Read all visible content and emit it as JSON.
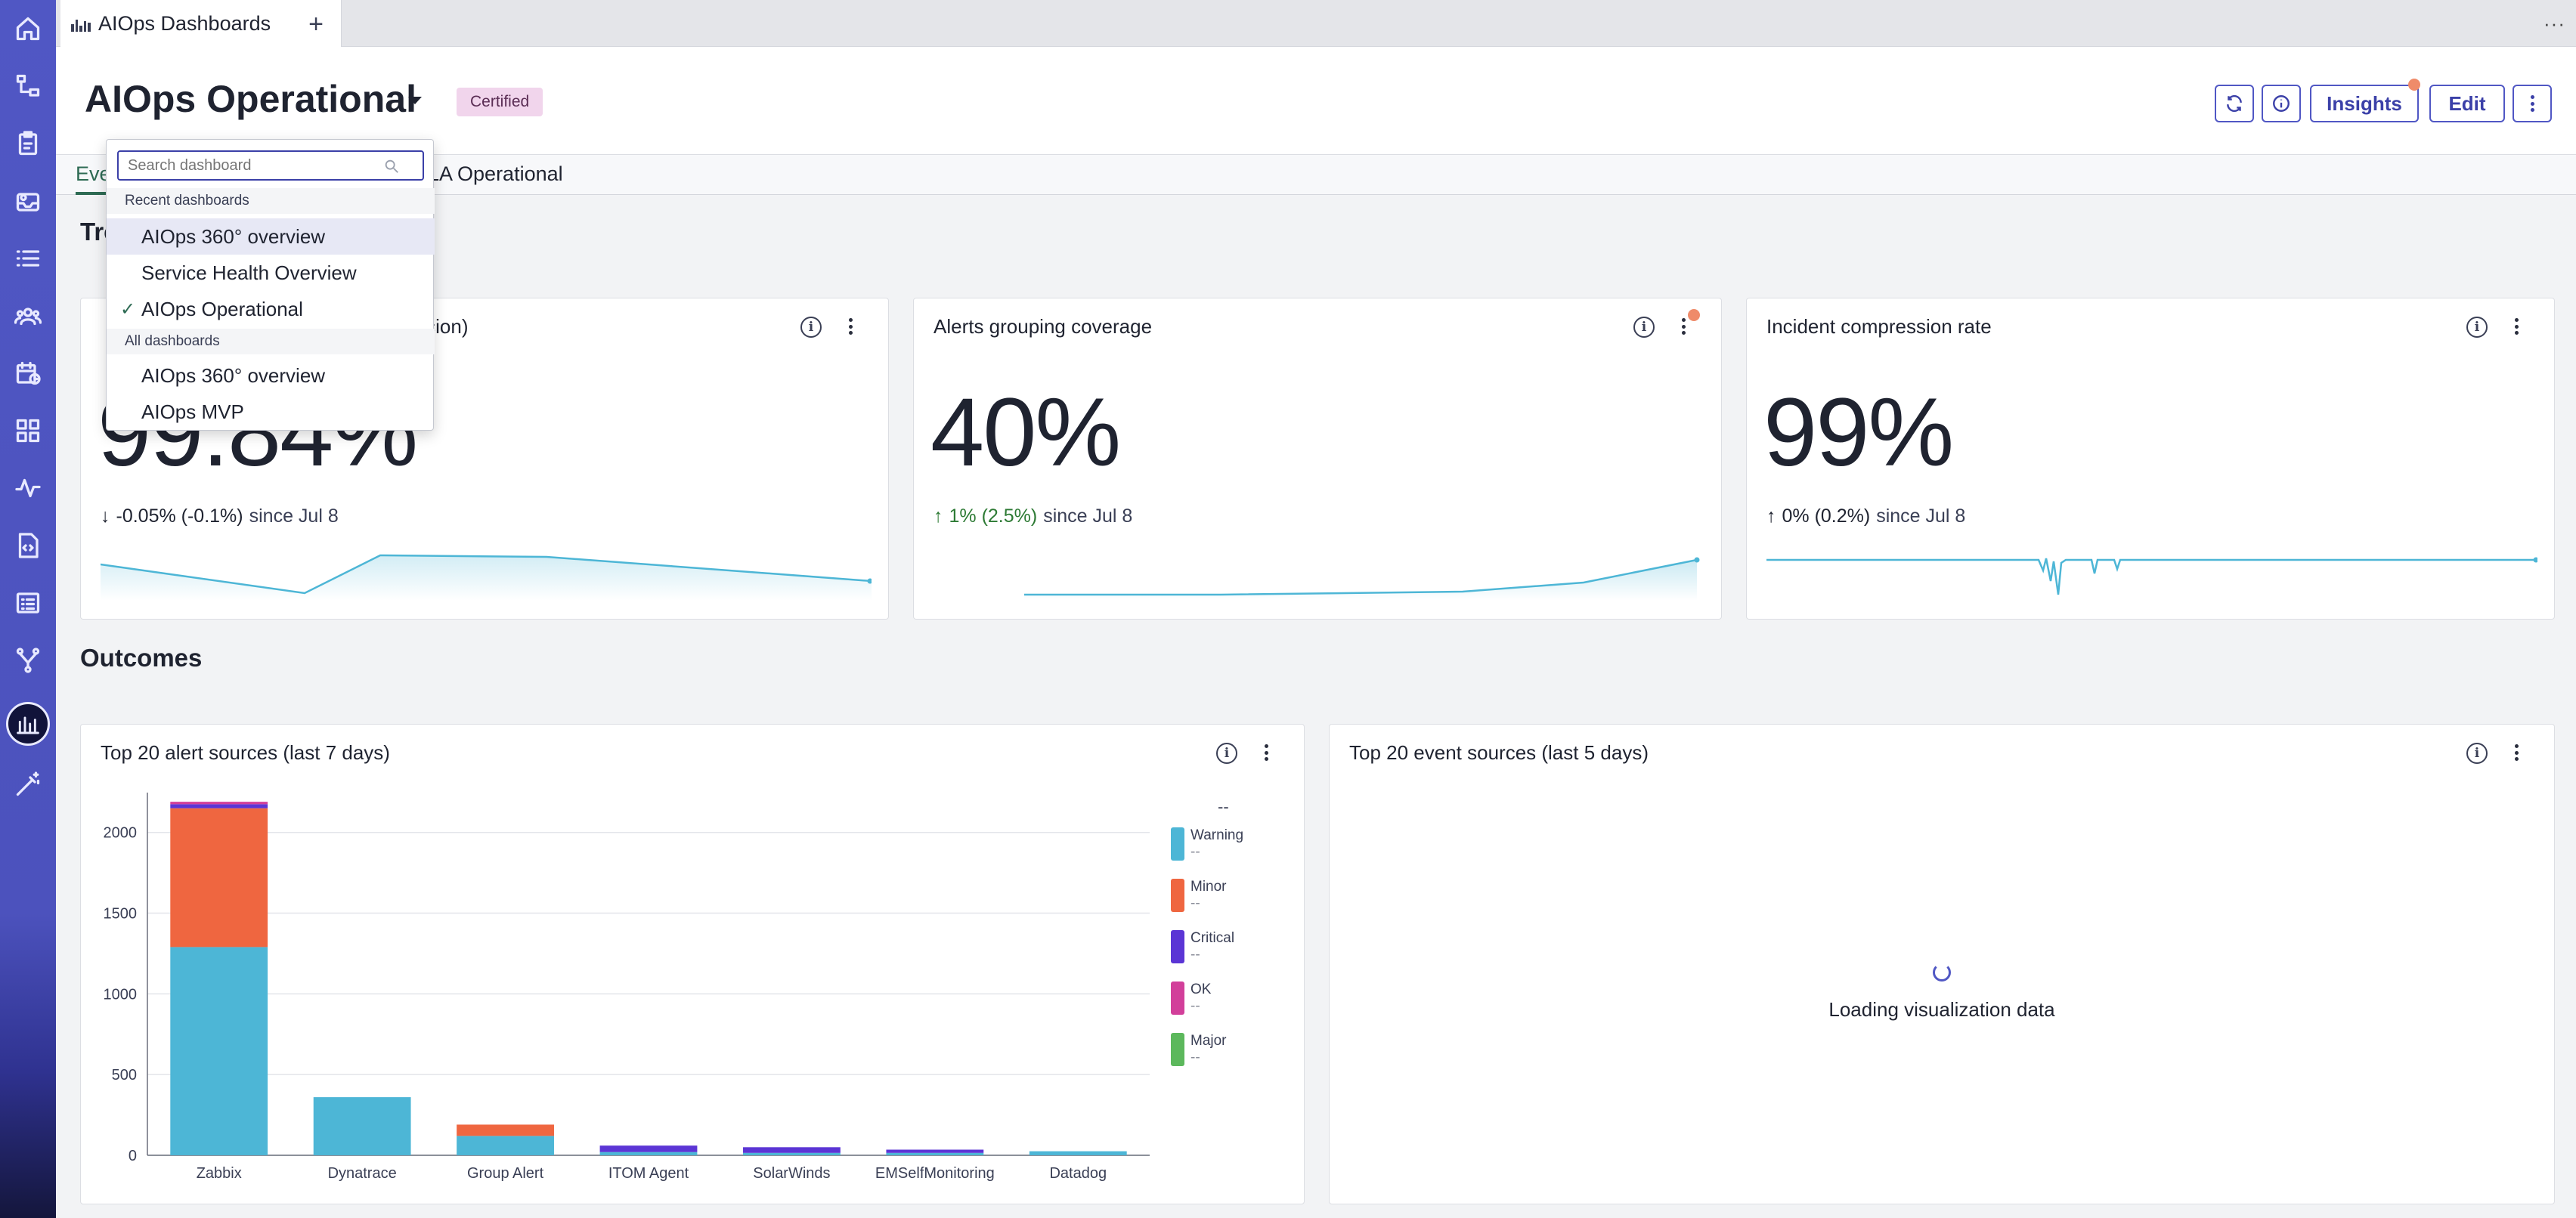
{
  "tabbar": {
    "tab_label": "AIOps Dashboards",
    "new_tab": "+",
    "more": "···"
  },
  "header": {
    "title": "AIOps Operational",
    "badge": "Certified",
    "insights_label": "Insights",
    "edit_label": "Edit"
  },
  "subtabs": {
    "first": "Eve",
    "second": "LA Operational"
  },
  "sections": {
    "trends": "Tre",
    "outcomes": "Outcomes"
  },
  "cards": [
    {
      "title": "ression)",
      "value": "99.84%",
      "delta": "-0.05% (-0.1%)",
      "direction": "down",
      "since": "since Jul 8"
    },
    {
      "title": "Alerts grouping coverage",
      "value": "40%",
      "delta": "1% (2.5%)",
      "direction": "up",
      "since": "since Jul 8"
    },
    {
      "title": "Incident compression rate",
      "value": "99%",
      "delta": "0% (0.2%)",
      "direction": "up",
      "since": "since Jul 8"
    }
  ],
  "dropdown": {
    "search_placeholder": "Search dashboard",
    "recent_heading": "Recent dashboards",
    "recent": [
      "AIOps 360° overview",
      "Service Health Overview",
      "AIOps Operational"
    ],
    "all_heading": "All dashboards",
    "all": [
      "AIOps 360° overview",
      "AIOps MVP"
    ]
  },
  "alert_chart_title": "Top 20 alert sources (last 7 days)",
  "event_chart": {
    "title": "Top 20 event sources (last 5 days)",
    "loading": "Loading visualization data"
  },
  "chart_data": {
    "type": "bar",
    "title": "Top 20 alert sources (last 7 days)",
    "stacked": true,
    "categories": [
      "Zabbix",
      "Dynatrace",
      "Group Alert",
      "ITOM Agent",
      "SolarWinds",
      "EMSelfMonitoring",
      "Datadog"
    ],
    "ylim": [
      0,
      2200
    ],
    "yticks": [
      0,
      500,
      1000,
      1500,
      2000
    ],
    "grid": true,
    "legend_placement": "right",
    "legend_header": "--",
    "series": [
      {
        "name": "Warning",
        "value_label": "--",
        "color": "#4db6d6",
        "values": [
          1290,
          360,
          120,
          20,
          15,
          15,
          25
        ]
      },
      {
        "name": "Minor",
        "value_label": "--",
        "color": "#ef6640",
        "values": [
          860,
          0,
          70,
          0,
          0,
          0,
          0
        ]
      },
      {
        "name": "Critical",
        "value_label": "--",
        "color": "#5b35d5",
        "values": [
          25,
          0,
          0,
          40,
          35,
          20,
          0
        ]
      },
      {
        "name": "OK",
        "value_label": "--",
        "color": "#d23f9a",
        "values": [
          15,
          0,
          0,
          0,
          0,
          0,
          0
        ]
      },
      {
        "name": "Major",
        "value_label": "--",
        "color": "#5cb85c",
        "values": [
          0,
          0,
          0,
          0,
          0,
          0,
          0
        ]
      }
    ]
  }
}
